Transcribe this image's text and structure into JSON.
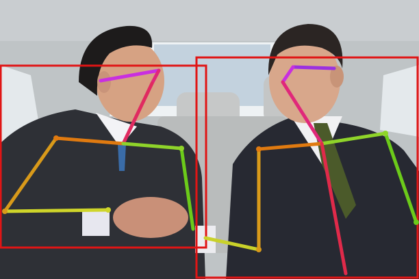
{
  "image": {
    "alt": "",
    "palette": {
      "car_interior": "#c9cfd0",
      "window": "#eef2f4",
      "seat": "#b9bcbc",
      "suit_dark": "#2b2d34",
      "skin": "#d7a68a",
      "hair": "#1c1a1a",
      "box": "#e01515"
    }
  },
  "annotations": {
    "boxes": [
      {
        "label": "",
        "color": "#e01515"
      },
      {
        "label": "",
        "color": "#e01515"
      }
    ],
    "skeleton_colors": {
      "head": "#e0287a",
      "eyes": "#9b30e0",
      "shoulder_left": "#e07a10",
      "upper_arm_left": "#d99a1a",
      "forearm_left": "#cfd52a",
      "shoulder_right": "#8fd42a",
      "upper_arm_right": "#6ccb1a",
      "forearm_right": "#c9d12a"
    }
  }
}
